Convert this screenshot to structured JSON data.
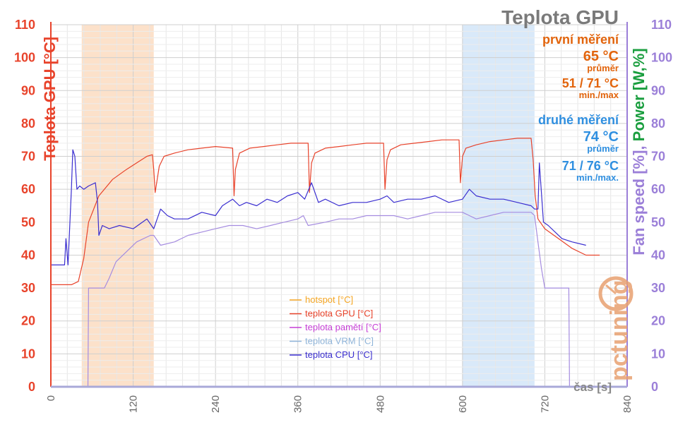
{
  "chart_data": {
    "type": "line",
    "title": "Teplota GPU",
    "xlabel": "čas [s]",
    "ylabel_left": "Teplota GPU [°C]",
    "ylabel_right": {
      "fan": "Fan speed [%], ",
      "power": "Power [W,%]"
    },
    "xlim": [
      0,
      840
    ],
    "ylim": [
      0,
      110
    ],
    "x_ticks": [
      "0",
      "120",
      "240",
      "360",
      "480",
      "600",
      "720",
      "840"
    ],
    "y_ticks": [
      "0",
      "10",
      "20",
      "30",
      "40",
      "50",
      "60",
      "70",
      "80",
      "90",
      "100",
      "110"
    ],
    "grid": true,
    "legend_position": "center-bottom",
    "colors": {
      "hotspot": "#f5a623",
      "gpu": "#e8432b",
      "memory": "#c63fd6",
      "vrm": "#8fb4d9",
      "cpu": "#3a2ed0",
      "fan_series": "#a58ce0",
      "left_axis": "#e8432b",
      "right_axis": "#9b7fd8",
      "power_label": "#1a9e3f",
      "first_band": "#fbd9bd",
      "second_band": "#cfe3f7",
      "first_text": "#e2640c",
      "second_text": "#2f8fe0"
    },
    "bands": [
      {
        "name": "první měření",
        "x_range": [
          45,
          150
        ]
      },
      {
        "name": "druhé měření",
        "x_range": [
          600,
          705
        ]
      }
    ],
    "series": [
      {
        "name": "hotspot [°C]",
        "values": []
      },
      {
        "name": "teplota GPU [°C]",
        "x": [
          0,
          30,
          40,
          48,
          55,
          70,
          90,
          110,
          125,
          140,
          148,
          150,
          152,
          158,
          165,
          180,
          200,
          220,
          240,
          265,
          267,
          269,
          275,
          290,
          310,
          330,
          350,
          375,
          377,
          380,
          385,
          400,
          420,
          440,
          460,
          485,
          487,
          490,
          495,
          510,
          530,
          550,
          570,
          595,
          597,
          600,
          605,
          620,
          640,
          660,
          680,
          700,
          703,
          706,
          710,
          720,
          740,
          760,
          780,
          800
        ],
        "values": [
          31,
          31,
          32,
          39,
          50,
          58,
          63,
          66,
          68,
          70,
          70.5,
          66,
          59,
          67,
          70,
          71,
          72,
          72.5,
          73,
          72.5,
          58,
          66,
          71,
          72.5,
          73,
          73.5,
          74,
          74,
          59,
          68,
          71,
          72.5,
          73,
          73.5,
          74,
          74,
          60,
          69,
          72,
          73.5,
          74,
          74.5,
          75,
          75,
          62,
          70,
          72.5,
          73.5,
          74.5,
          75,
          75.5,
          75.5,
          69,
          58,
          51,
          48,
          45,
          42,
          40,
          40
        ]
      },
      {
        "name": "teplota pamětí [°C]",
        "values": []
      },
      {
        "name": "teplota VRM [°C]",
        "x": [
          0,
          54,
          55,
          63,
          78,
          85,
          95,
          110,
          125,
          145,
          150,
          160,
          180,
          200,
          220,
          240,
          260,
          280,
          300,
          320,
          340,
          360,
          368,
          375,
          400,
          420,
          440,
          460,
          480,
          500,
          520,
          540,
          560,
          580,
          600,
          610,
          620,
          640,
          660,
          680,
          700,
          705,
          710,
          715,
          720,
          725,
          750,
          755,
          756,
          780
        ],
        "values": [
          0,
          0,
          30,
          30,
          30,
          33,
          38,
          41,
          44,
          46,
          46,
          43,
          44,
          46,
          47,
          48,
          49,
          49,
          48,
          49,
          50,
          51,
          52,
          49,
          50,
          51,
          51,
          52,
          52,
          52,
          51,
          52,
          53,
          53,
          53,
          52,
          51,
          52,
          53,
          53,
          53,
          52,
          44,
          36,
          30,
          30,
          30,
          30,
          0,
          0
        ]
      },
      {
        "name": "teplota CPU [°C]",
        "x": [
          0,
          20,
          22,
          25,
          30,
          32,
          35,
          38,
          42,
          48,
          55,
          65,
          68,
          70,
          75,
          85,
          100,
          120,
          140,
          150,
          160,
          170,
          180,
          200,
          220,
          240,
          250,
          265,
          275,
          285,
          300,
          315,
          330,
          345,
          360,
          370,
          380,
          390,
          400,
          420,
          440,
          460,
          480,
          490,
          500,
          520,
          540,
          560,
          580,
          600,
          610,
          620,
          640,
          660,
          680,
          700,
          705,
          710,
          712,
          718,
          725,
          735,
          745,
          760,
          780
        ],
        "values": [
          37,
          37,
          45,
          37,
          60,
          72,
          70,
          60,
          61,
          60,
          61,
          62,
          56,
          46,
          49,
          48,
          49,
          48,
          51,
          48,
          54,
          52,
          51,
          51,
          53,
          52,
          55,
          57,
          55,
          56,
          55,
          57,
          56,
          58,
          59,
          57,
          62,
          56,
          57,
          55,
          56,
          56,
          57,
          58,
          56,
          57,
          57,
          58,
          56,
          57,
          60,
          58,
          57,
          57,
          56,
          55,
          54,
          54,
          68,
          50,
          49,
          47,
          45,
          44,
          43
        ]
      }
    ],
    "legend": [
      {
        "label": "hotspot [°C]",
        "color": "#f5a623"
      },
      {
        "label": "teplota GPU [°C]",
        "color": "#e8432b"
      },
      {
        "label": "teplota pamětí [°C]",
        "color": "#c63fd6"
      },
      {
        "label": "teplota VRM [°C]",
        "color": "#8fb4d9"
      },
      {
        "label": "teplota CPU [°C]",
        "color": "#3a2ed0"
      }
    ],
    "annotations": {
      "first": {
        "heading": "první měření",
        "avg_value": "65 °C",
        "avg_label": "průměr",
        "minmax_value": "51 / 71 °C",
        "minmax_label": "min./max"
      },
      "second": {
        "heading": "druhé měření",
        "avg_value": "74 °C",
        "avg_label": "průměr",
        "minmax_value": "71 / 76 °C",
        "minmax_label": "min./max."
      }
    },
    "watermark": "pctuning"
  }
}
